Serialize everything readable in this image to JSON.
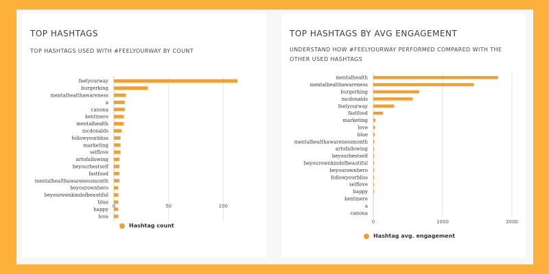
{
  "colors": {
    "bar": "#f0a033",
    "grid": "#e6e6e6",
    "axis": "#cccccc",
    "text": "#333333",
    "background": "#fdb13c"
  },
  "cards": [
    {
      "title": "TOP HASHTAGS",
      "subtitle": "TOP HASHTAGS USED WITH #FEELYOURWAY BY COUNT",
      "legend": "Hashtag count"
    },
    {
      "title": "TOP HASHTAGS BY AVG ENGAGEMENT",
      "subtitle": "UNDERSTAND HOW #FEELYOURWAY PERFORMED COMPARED WITH THE OTHER USED HASHTAGS",
      "legend": "Hashtag avg. engagement"
    }
  ],
  "chart_data": [
    {
      "type": "bar",
      "orientation": "horizontal",
      "title": "TOP HASHTAGS",
      "categories": [
        "feelyourway",
        "burgerking",
        "mentalhealthawareness",
        "a",
        "canona",
        "kentmere",
        "mentalhealth",
        "mcdonalds",
        "followyourbliss",
        "marketing",
        "selflove",
        "artofallowing",
        "beyourbestself",
        "fastfood",
        "mentalhealthawarenessmonth",
        "beyourownhero",
        "beyourownkindofbeautiful",
        "blue",
        "happy",
        "love"
      ],
      "series": [
        {
          "name": "Hashtag count",
          "values": [
            113,
            31,
            11,
            10,
            10,
            9,
            9,
            7,
            6,
            6,
            6,
            5,
            5,
            5,
            5,
            4,
            4,
            4,
            4,
            4
          ]
        }
      ],
      "x_ticks": [
        0,
        50,
        100
      ],
      "xlim": [
        0,
        118
      ],
      "grid": true,
      "legend_position": "bottom"
    },
    {
      "type": "bar",
      "orientation": "horizontal",
      "title": "TOP HASHTAGS BY AVG ENGAGEMENT",
      "categories": [
        "mentalhealth",
        "mentalhealthawareness",
        "burgerking",
        "mcdonalds",
        "feelyourway",
        "fastfood",
        "marketing",
        "love",
        "blue",
        "mentalhealthawarenessmonth",
        "artofallowing",
        "beyourbestself",
        "beyourownkindofbeautiful",
        "beyourownhero",
        "followyourbliss",
        "selflove",
        "happy",
        "kentmere",
        "a",
        "canona"
      ],
      "series": [
        {
          "name": "Hashtag avg. engagement",
          "values": [
            1800,
            1450,
            660,
            570,
            300,
            140,
            30,
            25,
            20,
            15,
            12,
            12,
            10,
            10,
            10,
            10,
            10,
            0,
            0,
            0
          ]
        }
      ],
      "x_ticks": [
        0,
        1000,
        2000
      ],
      "xlim": [
        0,
        2000
      ],
      "grid": true,
      "legend_position": "bottom"
    }
  ]
}
